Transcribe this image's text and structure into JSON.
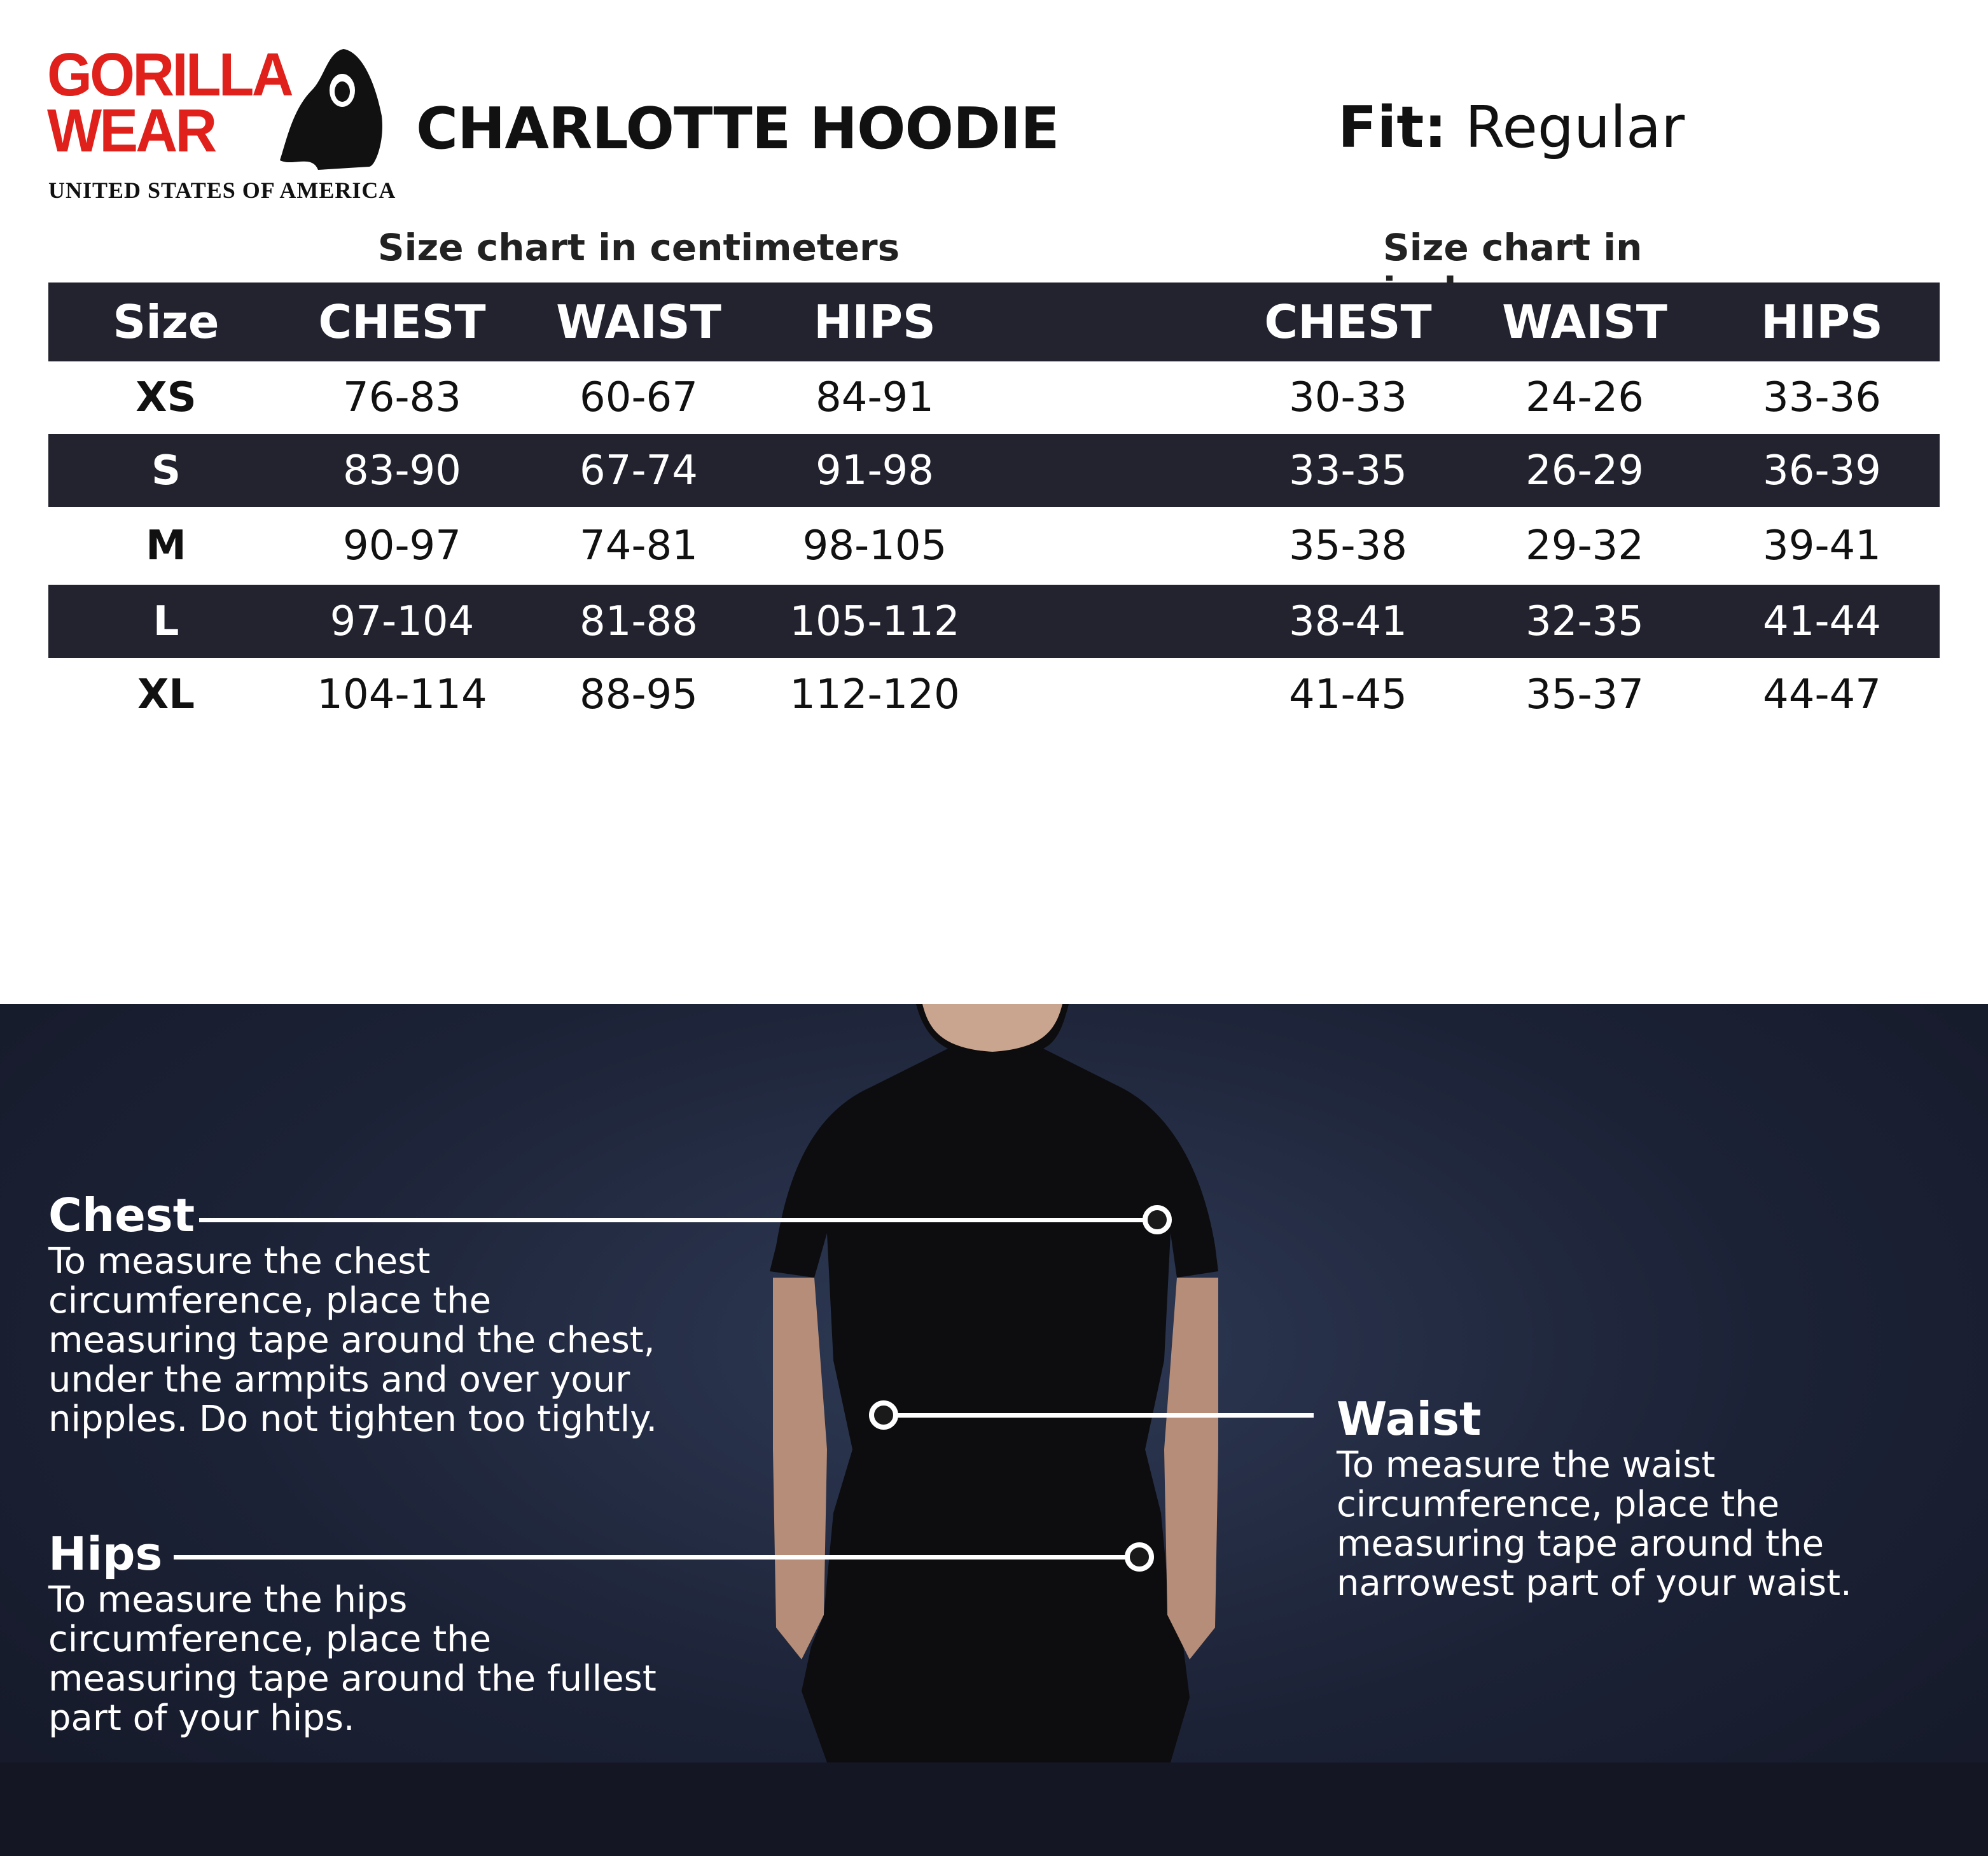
{
  "brand": {
    "logo_line1": "GORILLA",
    "logo_line2": "WEAR",
    "tagline": "UNITED STATES OF AMERICA"
  },
  "title": "CHARLOTTE HOODIE",
  "fit": {
    "label": "Fit:",
    "value": "Regular"
  },
  "cm_heading": "Size chart in centimeters",
  "in_heading": "Size chart in inches",
  "headers": [
    "Size",
    "CHEST",
    "WAIST",
    "HIPS",
    "CHEST",
    "WAIST",
    "HIPS"
  ],
  "rows": [
    [
      "XS",
      "76-83",
      "60-67",
      "84-91",
      "30-33",
      "24-26",
      "33-36"
    ],
    [
      "S",
      "83-90",
      "67-74",
      "91-98",
      "33-35",
      "26-29",
      "36-39"
    ],
    [
      "M",
      "90-97",
      "74-81",
      "98-105",
      "35-38",
      "29-32",
      "39-41"
    ],
    [
      "L",
      "97-104",
      "81-88",
      "105-112",
      "38-41",
      "32-35",
      "41-44"
    ],
    [
      "XL",
      "104-114",
      "88-95",
      "112-120",
      "41-45",
      "35-37",
      "44-47"
    ]
  ],
  "guide": {
    "chest": {
      "title": "Chest",
      "lines": [
        "To measure the chest",
        "circumference, place the",
        "measuring tape around the chest,",
        "under the armpits and over your",
        "nipples. Do not tighten too tightly."
      ]
    },
    "waist": {
      "title": "Waist",
      "lines": [
        "To measure the waist",
        "circumference, place the",
        "measuring tape around the",
        "narrowest part of your waist."
      ]
    },
    "hips": {
      "title": "Hips",
      "lines": [
        "To measure the hips",
        "circumference, place the",
        "measuring tape around the fullest",
        "part of your hips."
      ]
    }
  },
  "colors": {
    "brand_red": "#e0201b",
    "table_dark": "#22232f",
    "panel": "#1c2236"
  }
}
